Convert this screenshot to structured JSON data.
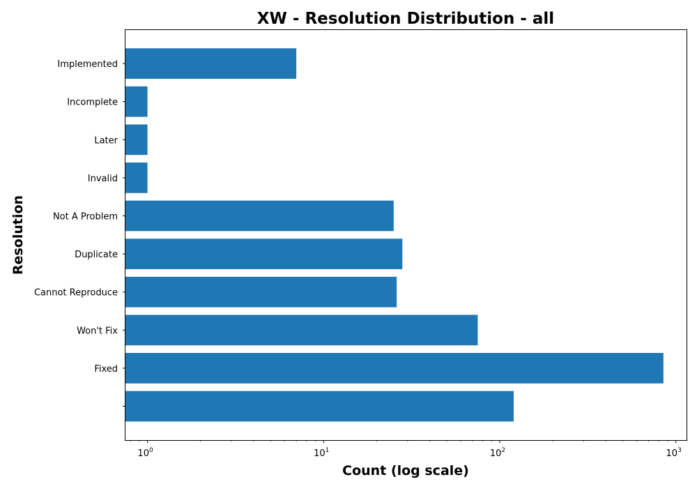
{
  "chart_data": {
    "type": "bar",
    "orientation": "horizontal",
    "title": "XW - Resolution Distribution - all",
    "xlabel": "Count (log scale)",
    "ylabel": "Resolution",
    "x_scale": "log",
    "xlim": [
      0.75,
      1150
    ],
    "grid": false,
    "legend": "none",
    "x_ticks": [
      {
        "value": 1,
        "base": "10",
        "exp": "0"
      },
      {
        "value": 10,
        "base": "10",
        "exp": "1"
      },
      {
        "value": 100,
        "base": "10",
        "exp": "2"
      },
      {
        "value": 1000,
        "base": "10",
        "exp": "3"
      }
    ],
    "categories": [
      "",
      "Fixed",
      "Won't Fix",
      "Cannot Reproduce",
      "Duplicate",
      "Not A Problem",
      "Invalid",
      "Later",
      "Incomplete",
      "Implemented"
    ],
    "values": [
      120,
      850,
      75,
      26,
      28,
      25,
      1,
      1,
      1,
      7
    ],
    "bar_color": "#1f77b4"
  }
}
